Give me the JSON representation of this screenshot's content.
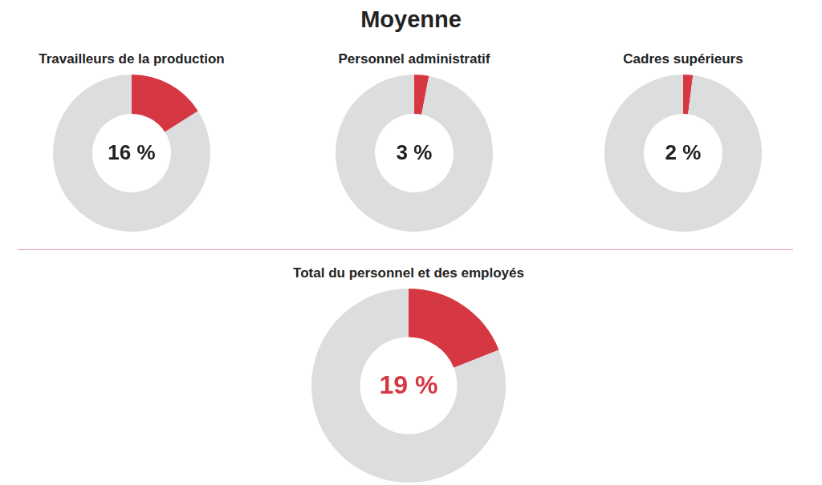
{
  "title": "Moyenne",
  "chart_data": [
    {
      "type": "doughnut",
      "title": "Travailleurs de la production",
      "values": [
        16
      ],
      "value_labels": [
        "16 %"
      ],
      "color": "#d63843",
      "data_labels": true
    },
    {
      "type": "doughnut",
      "title": "Personnel administratif",
      "values": [
        3
      ],
      "value_labels": [
        "3 %"
      ],
      "color": "#d63843",
      "data_labels": true
    },
    {
      "type": "doughnut",
      "title": "Cadres supérieurs",
      "values": [
        2
      ],
      "value_labels": [
        "2 %"
      ],
      "color": "#d63843",
      "data_labels": true
    },
    {
      "type": "doughnut",
      "title": "Total du personnel et des employés",
      "values": [
        19
      ],
      "value_labels": [
        "19 %"
      ],
      "color": "#d63843",
      "data_labels": true
    }
  ]
}
